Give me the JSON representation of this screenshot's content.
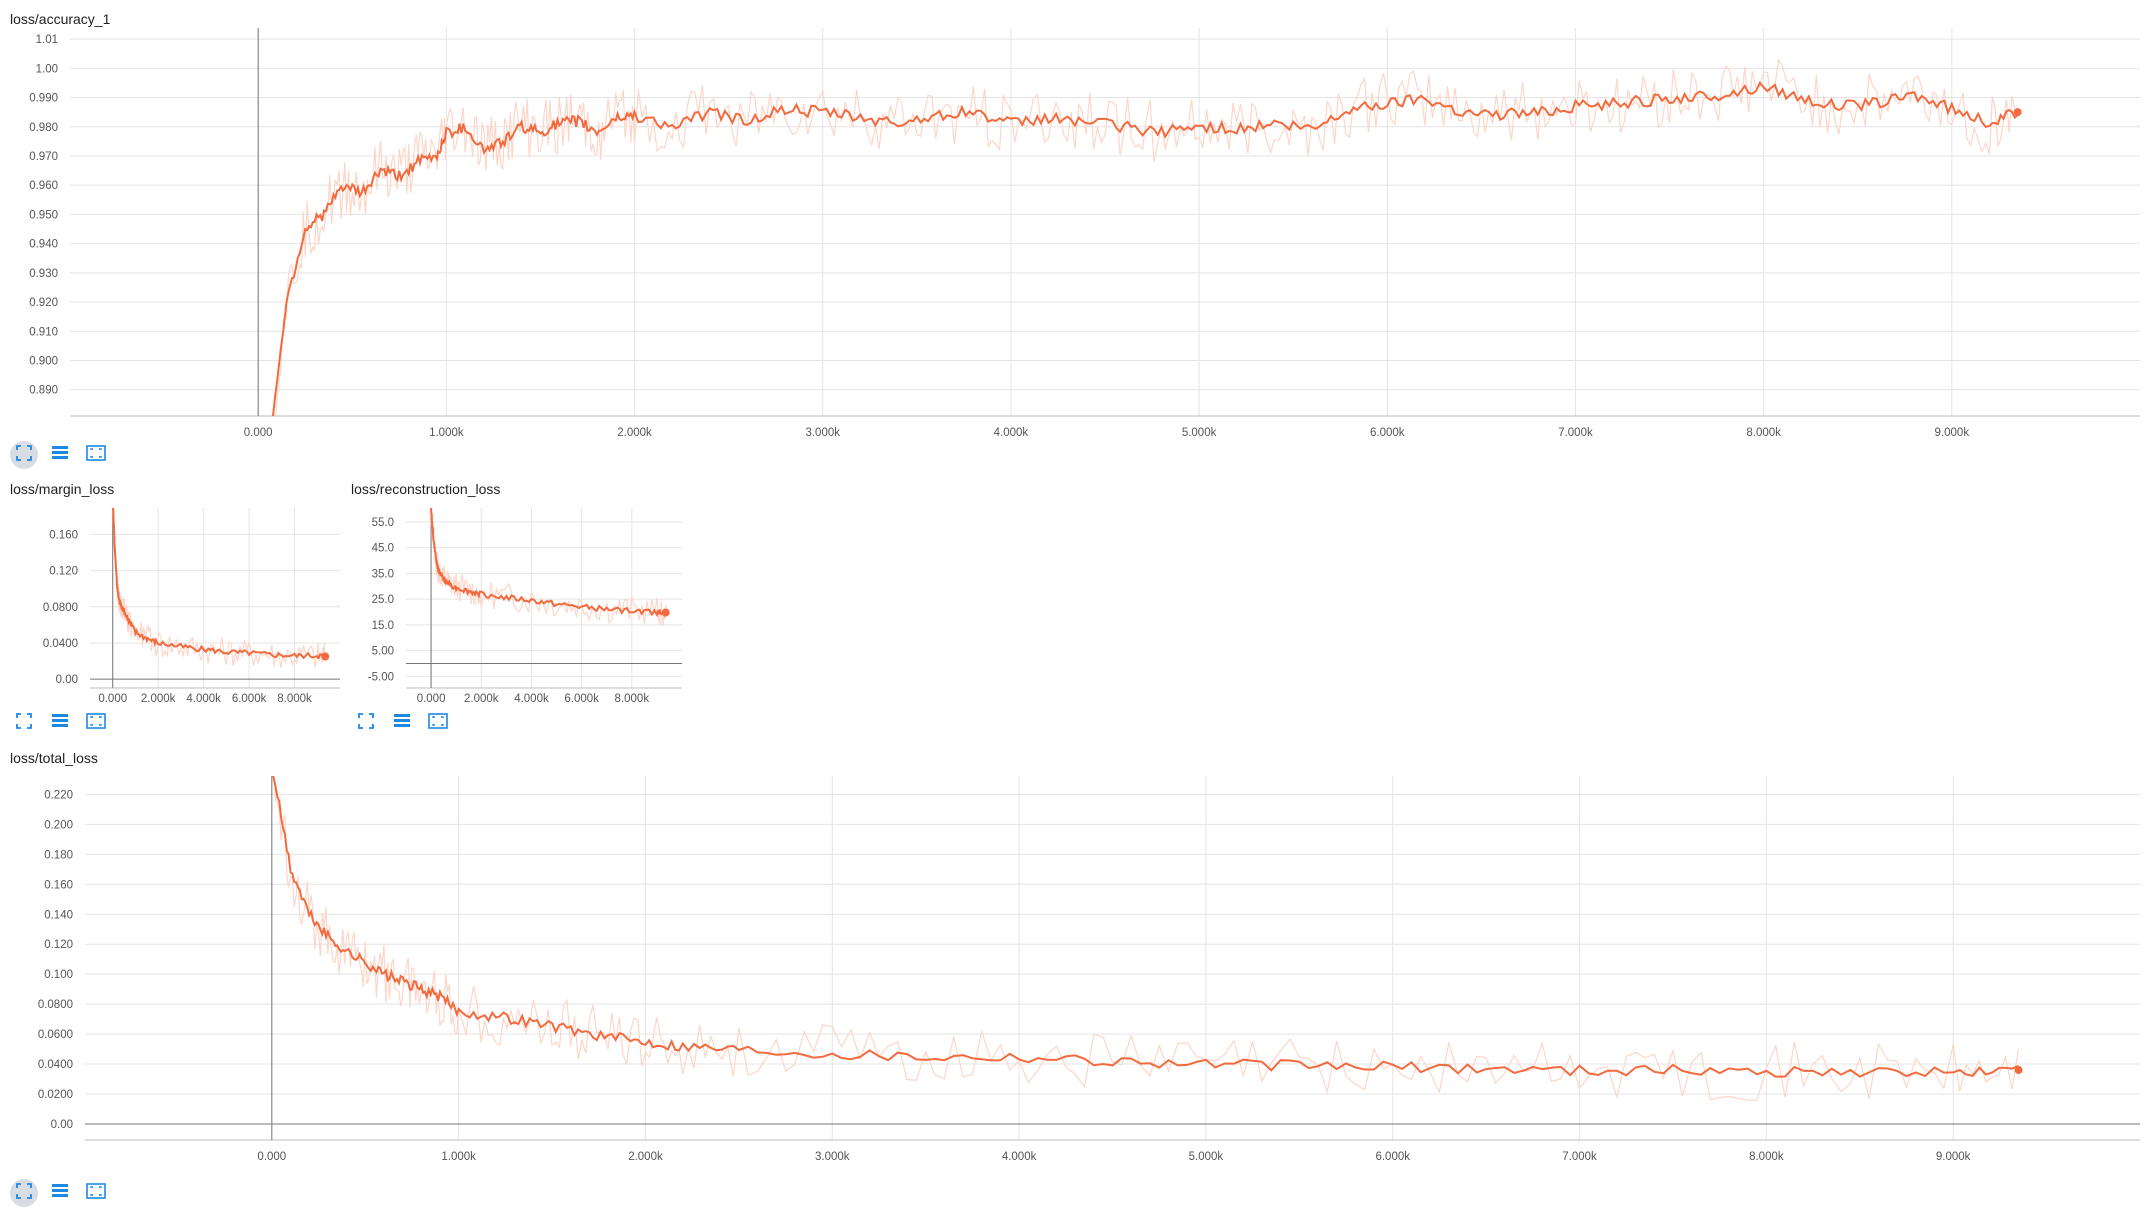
{
  "colors": {
    "series": "#f26a3d",
    "raw": "#fcd6c9",
    "grid": "#e4e4e4",
    "axis": "#777777",
    "icon": "#1e88e5"
  },
  "toolbar": {
    "icons": [
      "expand-icon",
      "data-table-icon",
      "fit-domain-icon"
    ]
  },
  "chart_data": [
    {
      "id": "accuracy",
      "type": "line",
      "title": "loss/accuracy_1",
      "xlim": [
        -1000,
        10000
      ],
      "ylim": [
        0.881,
        1.0138
      ],
      "xticks": [
        0,
        1000,
        2000,
        3000,
        4000,
        5000,
        6000,
        7000,
        8000,
        9000
      ],
      "xtick_labels": [
        "0.000",
        "1.000k",
        "2.000k",
        "3.000k",
        "4.000k",
        "5.000k",
        "6.000k",
        "7.000k",
        "8.000k",
        "9.000k"
      ],
      "yticks": [
        0.89,
        0.9,
        0.91,
        0.92,
        0.93,
        0.94,
        0.95,
        0.96,
        0.97,
        0.98,
        0.99,
        1.0,
        1.01
      ],
      "ytick_labels": [
        "0.890",
        "0.900",
        "0.910",
        "0.920",
        "0.930",
        "0.940",
        "0.950",
        "0.960",
        "0.970",
        "0.980",
        "0.990",
        "1.00",
        "1.01"
      ],
      "grid": true,
      "series": [
        {
          "x": [
            0,
            150,
            250,
            350,
            450,
            550,
            650,
            750,
            850,
            950,
            1000,
            1100,
            1200,
            1300,
            1400,
            1500,
            1600,
            1700,
            1800,
            1900,
            2000,
            2200,
            2400,
            2600,
            2800,
            3000,
            3200,
            3400,
            3600,
            3800,
            4000,
            4200,
            4400,
            4600,
            4800,
            5000,
            5200,
            5400,
            5600,
            5800,
            6000,
            6200,
            6400,
            6600,
            6800,
            7000,
            7200,
            7400,
            7600,
            7800,
            8000,
            8200,
            8400,
            8600,
            8800,
            9000,
            9200,
            9350
          ],
          "y": [
            0.84,
            0.92,
            0.945,
            0.95,
            0.96,
            0.957,
            0.965,
            0.963,
            0.968,
            0.97,
            0.978,
            0.98,
            0.972,
            0.975,
            0.98,
            0.978,
            0.981,
            0.982,
            0.978,
            0.983,
            0.984,
            0.98,
            0.985,
            0.982,
            0.986,
            0.985,
            0.983,
            0.981,
            0.984,
            0.985,
            0.981,
            0.983,
            0.982,
            0.98,
            0.978,
            0.98,
            0.979,
            0.981,
            0.979,
            0.986,
            0.988,
            0.99,
            0.985,
            0.984,
            0.985,
            0.987,
            0.988,
            0.989,
            0.99,
            0.991,
            0.994,
            0.99,
            0.987,
            0.988,
            0.991,
            0.986,
            0.981,
            0.985
          ]
        }
      ]
    },
    {
      "id": "margin",
      "type": "line",
      "title": "loss/margin_loss",
      "xlim": [
        -1000,
        10000
      ],
      "ylim": [
        -0.0098,
        0.1892
      ],
      "xticks": [
        0,
        2000,
        4000,
        6000,
        8000
      ],
      "xtick_labels": [
        "0.000",
        "2.000k",
        "4.000k",
        "6.000k",
        "8.000k"
      ],
      "yticks": [
        0,
        0.04,
        0.08,
        0.12,
        0.16
      ],
      "ytick_labels": [
        "0.00",
        "0.0400",
        "0.0800",
        "0.120",
        "0.160"
      ],
      "grid": true,
      "series": [
        {
          "x": [
            0,
            100,
            200,
            300,
            500,
            700,
            1000,
            1500,
            2000,
            3000,
            4000,
            5000,
            6000,
            7000,
            8000,
            9000,
            9350
          ],
          "y": [
            0.2,
            0.14,
            0.1,
            0.085,
            0.075,
            0.065,
            0.052,
            0.045,
            0.04,
            0.036,
            0.033,
            0.03,
            0.029,
            0.027,
            0.026,
            0.026,
            0.025
          ]
        }
      ]
    },
    {
      "id": "reconstruction",
      "type": "line",
      "title": "loss/reconstruction_loss",
      "xlim": [
        -1000,
        10000
      ],
      "ylim": [
        -9.5,
        60.4
      ],
      "xticks": [
        0,
        2000,
        4000,
        6000,
        8000
      ],
      "xtick_labels": [
        "0.000",
        "2.000k",
        "4.000k",
        "6.000k",
        "8.000k"
      ],
      "yticks": [
        -5,
        5,
        15,
        25,
        35,
        45,
        55
      ],
      "ytick_labels": [
        "-5.00",
        "5.00",
        "15.0",
        "25.0",
        "35.0",
        "45.0",
        "55.0"
      ],
      "grid": true,
      "series": [
        {
          "x": [
            0,
            100,
            200,
            300,
            500,
            700,
            1000,
            1500,
            2000,
            3000,
            4000,
            5000,
            6000,
            7000,
            8000,
            9000,
            9350
          ],
          "y": [
            60,
            48,
            40,
            36,
            33,
            31,
            29.5,
            28,
            27,
            25.5,
            24.5,
            23,
            22,
            21,
            20.5,
            20,
            19.8
          ]
        }
      ]
    },
    {
      "id": "total",
      "type": "line",
      "title": "loss/total_loss",
      "xlim": [
        -1000,
        10000
      ],
      "ylim": [
        -0.0107,
        0.2323
      ],
      "xticks": [
        0,
        1000,
        2000,
        3000,
        4000,
        5000,
        6000,
        7000,
        8000,
        9000
      ],
      "xtick_labels": [
        "0.000",
        "1.000k",
        "2.000k",
        "3.000k",
        "4.000k",
        "5.000k",
        "6.000k",
        "7.000k",
        "8.000k",
        "9.000k"
      ],
      "yticks": [
        0,
        0.02,
        0.04,
        0.06,
        0.08,
        0.1,
        0.12,
        0.14,
        0.16,
        0.18,
        0.2,
        0.22
      ],
      "ytick_labels": [
        "0.00",
        "0.0200",
        "0.0400",
        "0.0600",
        "0.0800",
        "0.100",
        "0.120",
        "0.140",
        "0.160",
        "0.180",
        "0.200",
        "0.220"
      ],
      "grid": true,
      "series": [
        {
          "x": [
            0,
            100,
            200,
            300,
            400,
            500,
            600,
            700,
            800,
            900,
            1000,
            1200,
            1400,
            1600,
            1800,
            2000,
            2200,
            2500,
            3000,
            3500,
            4000,
            4500,
            5000,
            5500,
            6000,
            6500,
            7000,
            7500,
            8000,
            8500,
            9000,
            9350
          ],
          "y": [
            0.24,
            0.17,
            0.14,
            0.125,
            0.115,
            0.108,
            0.1,
            0.095,
            0.09,
            0.085,
            0.075,
            0.072,
            0.068,
            0.063,
            0.058,
            0.055,
            0.052,
            0.05,
            0.047,
            0.045,
            0.045,
            0.042,
            0.04,
            0.039,
            0.038,
            0.037,
            0.036,
            0.036,
            0.035,
            0.035,
            0.034,
            0.036
          ]
        }
      ]
    }
  ]
}
